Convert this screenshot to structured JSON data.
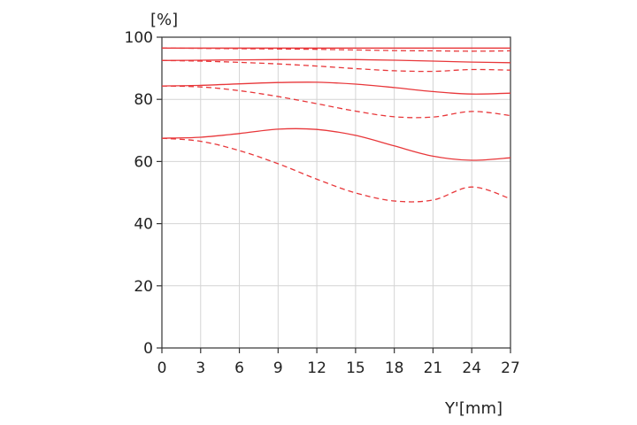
{
  "chart_data": {
    "type": "line",
    "ylabel": "[%]",
    "xlabel": "Y'[mm]",
    "xlim": [
      0,
      27
    ],
    "ylim": [
      0,
      100
    ],
    "grid": true,
    "x_ticks": [
      0,
      3,
      6,
      9,
      12,
      15,
      18,
      21,
      24,
      27
    ],
    "y_ticks": [
      0,
      20,
      40,
      60,
      80,
      100
    ],
    "line_color": "#e8373a",
    "series": [
      {
        "style": "solid",
        "x": [
          0,
          3,
          6,
          9,
          12,
          15,
          18,
          21,
          24,
          27
        ],
        "y": [
          96.5,
          96.5,
          96.5,
          96.5,
          96.5,
          96.5,
          96.5,
          96.5,
          96.5,
          96.5
        ]
      },
      {
        "style": "dashed",
        "x": [
          0,
          3,
          6,
          9,
          12,
          15,
          18,
          21,
          24,
          27
        ],
        "y": [
          96.5,
          96.4,
          96.3,
          96.2,
          96.1,
          95.9,
          95.7,
          95.6,
          95.5,
          95.6
        ]
      },
      {
        "style": "solid",
        "x": [
          0,
          3,
          6,
          9,
          12,
          15,
          18,
          21,
          24,
          27
        ],
        "y": [
          92.5,
          92.6,
          92.7,
          92.8,
          92.8,
          92.8,
          92.6,
          92.3,
          92.0,
          91.8
        ]
      },
      {
        "style": "dashed",
        "x": [
          0,
          3,
          6,
          9,
          12,
          15,
          18,
          21,
          24,
          27
        ],
        "y": [
          92.5,
          92.3,
          91.9,
          91.4,
          90.7,
          89.9,
          89.2,
          89.0,
          89.6,
          89.4
        ]
      },
      {
        "style": "solid",
        "x": [
          0,
          3,
          6,
          9,
          12,
          15,
          18,
          21,
          24,
          27
        ],
        "y": [
          84.3,
          84.5,
          85.0,
          85.4,
          85.5,
          84.9,
          83.8,
          82.5,
          81.7,
          82.0
        ]
      },
      {
        "style": "dashed",
        "x": [
          0,
          3,
          6,
          9,
          12,
          15,
          18,
          21,
          24,
          27
        ],
        "y": [
          84.3,
          84.0,
          82.8,
          80.9,
          78.6,
          76.2,
          74.4,
          74.3,
          76.1,
          74.8
        ]
      },
      {
        "style": "solid",
        "x": [
          0,
          3,
          6,
          9,
          12,
          15,
          18,
          21,
          24,
          27
        ],
        "y": [
          67.5,
          67.8,
          69.0,
          70.4,
          70.3,
          68.4,
          65.0,
          61.7,
          60.4,
          61.2
        ]
      },
      {
        "style": "dashed",
        "x": [
          0,
          3,
          6,
          9,
          12,
          15,
          18,
          21,
          24,
          27
        ],
        "y": [
          67.5,
          66.5,
          63.5,
          59.3,
          54.3,
          49.9,
          47.3,
          47.6,
          51.8,
          48.0
        ]
      }
    ]
  }
}
